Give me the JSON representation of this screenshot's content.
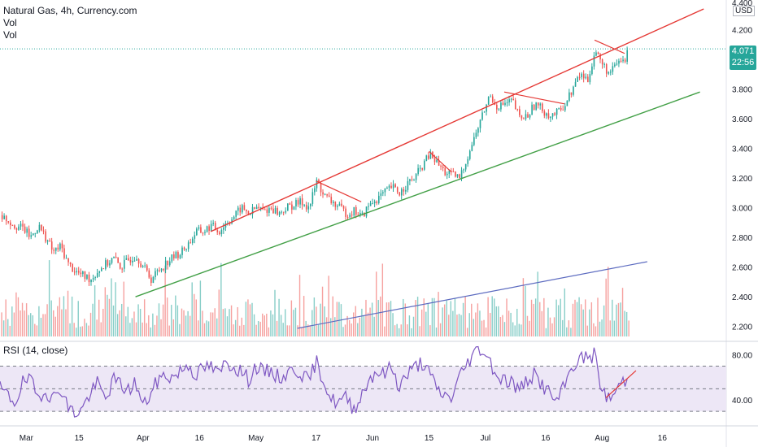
{
  "legend": {
    "title": "Natural Gas, 4h, Currency.com",
    "vol1": "Vol",
    "vol2": "Vol"
  },
  "rsi_title": "RSI (14, close)",
  "price_axis": {
    "unit": "USD",
    "last_price": "4.071",
    "countdown": "22:56",
    "top_partial_tick": "4.400"
  },
  "colors": {
    "up": "#26a69a",
    "down": "#ef5350",
    "channel_upper": "#e53935",
    "channel_lower": "#43a047",
    "volume_trend": "#5c6bc0",
    "rsi_line": "#7e57c2",
    "rsi_band": "#ede7f6",
    "last_price_line": "#26a69a"
  },
  "chart_data": [
    {
      "type": "candlestick",
      "timeframe": "4h",
      "ylim": [
        2.1,
        4.4
      ],
      "yticks": [
        2.2,
        2.4,
        2.6,
        2.8,
        3.0,
        3.2,
        3.4,
        3.6,
        3.8,
        4.0,
        4.2
      ],
      "ytick_labels": [
        "2.200",
        "2.400",
        "2.600",
        "2.800",
        "3.000",
        "3.200",
        "3.400",
        "3.600",
        "3.800",
        "4.000",
        "4.200"
      ],
      "x_labels": [
        "Mar",
        "15",
        "Apr",
        "16",
        "May",
        "17",
        "Jun",
        "15",
        "Jul",
        "16",
        "Aug",
        "16"
      ],
      "x_positions": [
        0,
        14,
        31,
        46,
        61,
        77,
        92,
        107,
        122,
        138,
        153,
        169
      ],
      "x_range": [
        -7,
        186
      ],
      "close_path": [
        [
          -7,
          2.95
        ],
        [
          -3,
          2.88
        ],
        [
          -1,
          2.86
        ],
        [
          1,
          2.8
        ],
        [
          3,
          2.88
        ],
        [
          5,
          2.8
        ],
        [
          7,
          2.7
        ],
        [
          9,
          2.74
        ],
        [
          11,
          2.62
        ],
        [
          13,
          2.57
        ],
        [
          15,
          2.54
        ],
        [
          17,
          2.52
        ],
        [
          19,
          2.58
        ],
        [
          21,
          2.62
        ],
        [
          23,
          2.66
        ],
        [
          25,
          2.6
        ],
        [
          27,
          2.65
        ],
        [
          29,
          2.68
        ],
        [
          31,
          2.6
        ],
        [
          33,
          2.52
        ],
        [
          35,
          2.58
        ],
        [
          37,
          2.63
        ],
        [
          39,
          2.67
        ],
        [
          41,
          2.7
        ],
        [
          43,
          2.76
        ],
        [
          45,
          2.84
        ],
        [
          47,
          2.84
        ],
        [
          49,
          2.88
        ],
        [
          51,
          2.84
        ],
        [
          53,
          2.9
        ],
        [
          55,
          2.94
        ],
        [
          57,
          3.0
        ],
        [
          59,
          2.96
        ],
        [
          61,
          3.0
        ],
        [
          63,
          2.98
        ],
        [
          65,
          3.0
        ],
        [
          67,
          2.96
        ],
        [
          69,
          3.0
        ],
        [
          71,
          3.02
        ],
        [
          73,
          3.04
        ],
        [
          75,
          3.0
        ],
        [
          77,
          3.18
        ],
        [
          79,
          3.08
        ],
        [
          81,
          3.04
        ],
        [
          83,
          3.0
        ],
        [
          85,
          2.96
        ],
        [
          87,
          2.98
        ],
        [
          89,
          2.94
        ],
        [
          91,
          3.02
        ],
        [
          93,
          3.06
        ],
        [
          95,
          3.1
        ],
        [
          97,
          3.14
        ],
        [
          99,
          3.1
        ],
        [
          101,
          3.16
        ],
        [
          103,
          3.2
        ],
        [
          105,
          3.28
        ],
        [
          107,
          3.36
        ],
        [
          109,
          3.3
        ],
        [
          111,
          3.24
        ],
        [
          113,
          3.22
        ],
        [
          115,
          3.2
        ],
        [
          117,
          3.34
        ],
        [
          119,
          3.48
        ],
        [
          121,
          3.62
        ],
        [
          123,
          3.76
        ],
        [
          125,
          3.68
        ],
        [
          127,
          3.7
        ],
        [
          129,
          3.72
        ],
        [
          131,
          3.6
        ],
        [
          133,
          3.62
        ],
        [
          135,
          3.7
        ],
        [
          137,
          3.66
        ],
        [
          139,
          3.62
        ],
        [
          141,
          3.64
        ],
        [
          143,
          3.7
        ],
        [
          145,
          3.8
        ],
        [
          147,
          3.9
        ],
        [
          149,
          3.86
        ],
        [
          151,
          4.06
        ],
        [
          153,
          3.96
        ],
        [
          155,
          3.9
        ],
        [
          157,
          3.98
        ],
        [
          159,
          4.0
        ],
        [
          160,
          4.071
        ]
      ],
      "last_price": 4.071,
      "trendlines": [
        {
          "name": "channel-upper",
          "from": [
            49,
            2.84
          ],
          "to": [
            180,
            4.34
          ]
        },
        {
          "name": "channel-lower",
          "from": [
            29,
            2.4
          ],
          "to": [
            179,
            3.78
          ]
        },
        {
          "name": "pullback-1",
          "from": [
            77,
            3.18
          ],
          "to": [
            89,
            3.04
          ]
        },
        {
          "name": "pullback-2",
          "from": [
            107,
            3.38
          ],
          "to": [
            113,
            3.24
          ]
        },
        {
          "name": "pullback-3",
          "from": [
            127,
            3.78
          ],
          "to": [
            143,
            3.7
          ]
        },
        {
          "name": "pullback-4",
          "from": [
            151,
            4.13
          ],
          "to": [
            159,
            4.04
          ]
        }
      ]
    },
    {
      "type": "bar",
      "name": "Vol",
      "x_range": [
        -7,
        186
      ],
      "volume_trendline": {
        "from": [
          72,
          0.1
        ],
        "to": [
          165,
          0.92
        ]
      }
    },
    {
      "type": "line",
      "name": "RSI (14, close)",
      "ylim": [
        20,
        92
      ],
      "yticks": [
        40,
        80
      ],
      "ytick_labels": [
        "40.00",
        "80.00"
      ],
      "bands": [
        30,
        50,
        70
      ],
      "x_range": [
        -7,
        186
      ],
      "values_path": [
        [
          -7,
          50
        ],
        [
          -5,
          44
        ],
        [
          -3,
          38
        ],
        [
          -1,
          55
        ],
        [
          1,
          58
        ],
        [
          3,
          42
        ],
        [
          5,
          50
        ],
        [
          7,
          40
        ],
        [
          9,
          52
        ],
        [
          11,
          34
        ],
        [
          13,
          28
        ],
        [
          15,
          33
        ],
        [
          17,
          46
        ],
        [
          19,
          55
        ],
        [
          21,
          40
        ],
        [
          23,
          58
        ],
        [
          25,
          54
        ],
        [
          27,
          48
        ],
        [
          29,
          56
        ],
        [
          31,
          34
        ],
        [
          33,
          45
        ],
        [
          35,
          58
        ],
        [
          37,
          62
        ],
        [
          39,
          60
        ],
        [
          41,
          66
        ],
        [
          43,
          72
        ],
        [
          45,
          62
        ],
        [
          47,
          68
        ],
        [
          49,
          70
        ],
        [
          51,
          62
        ],
        [
          53,
          74
        ],
        [
          55,
          70
        ],
        [
          57,
          66
        ],
        [
          59,
          58
        ],
        [
          61,
          70
        ],
        [
          63,
          64
        ],
        [
          65,
          66
        ],
        [
          67,
          60
        ],
        [
          69,
          62
        ],
        [
          71,
          68
        ],
        [
          73,
          64
        ],
        [
          75,
          56
        ],
        [
          77,
          74
        ],
        [
          79,
          58
        ],
        [
          81,
          40
        ],
        [
          83,
          38
        ],
        [
          85,
          42
        ],
        [
          87,
          32
        ],
        [
          89,
          44
        ],
        [
          91,
          58
        ],
        [
          93,
          66
        ],
        [
          95,
          62
        ],
        [
          97,
          70
        ],
        [
          99,
          52
        ],
        [
          101,
          62
        ],
        [
          103,
          68
        ],
        [
          105,
          74
        ],
        [
          107,
          64
        ],
        [
          109,
          50
        ],
        [
          111,
          44
        ],
        [
          113,
          42
        ],
        [
          115,
          60
        ],
        [
          117,
          72
        ],
        [
          119,
          82
        ],
        [
          121,
          86
        ],
        [
          123,
          76
        ],
        [
          125,
          62
        ],
        [
          127,
          58
        ],
        [
          129,
          56
        ],
        [
          131,
          48
        ],
        [
          133,
          58
        ],
        [
          135,
          62
        ],
        [
          137,
          54
        ],
        [
          139,
          46
        ],
        [
          141,
          38
        ],
        [
          143,
          52
        ],
        [
          145,
          70
        ],
        [
          147,
          76
        ],
        [
          149,
          78
        ],
        [
          151,
          80
        ],
        [
          153,
          48
        ],
        [
          155,
          40
        ],
        [
          157,
          50
        ],
        [
          159,
          58
        ],
        [
          160,
          55
        ]
      ],
      "trendline": {
        "from": [
          154,
          42
        ],
        "to": [
          162,
          66
        ]
      }
    }
  ]
}
